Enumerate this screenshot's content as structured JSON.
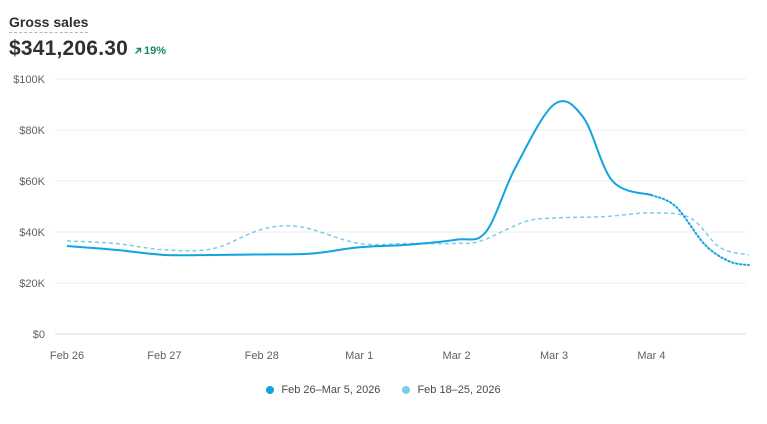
{
  "header": {
    "metric_label": "Gross sales",
    "metric_value": "$341,206.30",
    "delta": "19%",
    "delta_icon": "arrow-up-right-icon",
    "delta_color": "#1a8a5a"
  },
  "chart_data": {
    "type": "line",
    "title": "Gross sales",
    "xlabel": "",
    "ylabel": "",
    "ylim": [
      0,
      100000
    ],
    "y_ticks": [
      {
        "value": 0,
        "label": "$0"
      },
      {
        "value": 20000,
        "label": "$20K"
      },
      {
        "value": 40000,
        "label": "$40K"
      },
      {
        "value": 60000,
        "label": "$60K"
      },
      {
        "value": 80000,
        "label": "$80K"
      },
      {
        "value": 100000,
        "label": "$100K"
      }
    ],
    "x_ticks": [
      {
        "x": 0,
        "label": "Feb 26"
      },
      {
        "x": 1,
        "label": "Feb 27"
      },
      {
        "x": 2,
        "label": "Feb 28"
      },
      {
        "x": 3,
        "label": "Mar 1"
      },
      {
        "x": 4,
        "label": "Mar 2"
      },
      {
        "x": 5,
        "label": "Mar 3"
      },
      {
        "x": 6,
        "label": "Mar 4"
      }
    ],
    "xlim": [
      0,
      7
    ],
    "grid": true,
    "series": [
      {
        "name": "Feb 26–Mar 5, 2026",
        "color": "#13a3e0",
        "style": "solid",
        "incomplete_after_x": 6,
        "points": [
          [
            0,
            34500
          ],
          [
            0.5,
            33000
          ],
          [
            1,
            31000
          ],
          [
            1.5,
            31000
          ],
          [
            2,
            31200
          ],
          [
            2.5,
            31500
          ],
          [
            3,
            34000
          ],
          [
            3.5,
            35000
          ],
          [
            4,
            37000
          ],
          [
            4.3,
            40000
          ],
          [
            4.6,
            65000
          ],
          [
            5,
            90000
          ],
          [
            5.3,
            85000
          ],
          [
            5.6,
            60000
          ],
          [
            6,
            54500
          ],
          [
            6.25,
            50000
          ],
          [
            6.55,
            35000
          ],
          [
            6.8,
            28500
          ],
          [
            7,
            27000
          ]
        ]
      },
      {
        "name": "Feb 18–25, 2026",
        "color": "#7fcbeb",
        "style": "dashed",
        "points": [
          [
            0,
            36500
          ],
          [
            0.5,
            35500
          ],
          [
            1,
            33000
          ],
          [
            1.5,
            33500
          ],
          [
            2,
            41000
          ],
          [
            2.4,
            42000
          ],
          [
            3,
            35500
          ],
          [
            3.5,
            35500
          ],
          [
            4,
            35500
          ],
          [
            4.25,
            36500
          ],
          [
            4.7,
            44000
          ],
          [
            5,
            45500
          ],
          [
            5.5,
            46000
          ],
          [
            6,
            47500
          ],
          [
            6.4,
            45500
          ],
          [
            6.7,
            34000
          ],
          [
            7,
            31000
          ]
        ]
      }
    ]
  },
  "legend": [
    {
      "label": "Feb 26–Mar 5, 2026",
      "color": "#13a3e0"
    },
    {
      "label": "Feb 18–25, 2026",
      "color": "#7fcbeb"
    }
  ]
}
